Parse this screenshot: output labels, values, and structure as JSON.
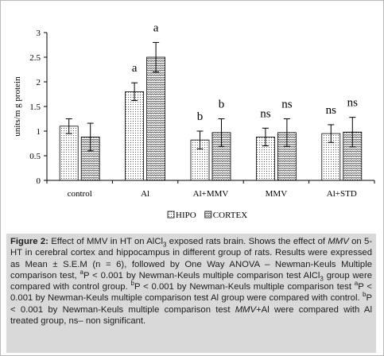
{
  "chart_data": {
    "type": "bar",
    "categories": [
      "control",
      "Al",
      "Al+MMV",
      "MMV",
      "Al+STD"
    ],
    "series": [
      {
        "name": "HIPO",
        "values": [
          1.1,
          1.8,
          0.82,
          0.88,
          0.95
        ],
        "errors": [
          0.15,
          0.18,
          0.18,
          0.18,
          0.18
        ],
        "pattern": "dots"
      },
      {
        "name": "CORTEX",
        "values": [
          0.88,
          2.5,
          0.97,
          0.97,
          0.98
        ],
        "errors": [
          0.28,
          0.3,
          0.28,
          0.28,
          0.3
        ],
        "pattern": "zigzag"
      }
    ],
    "annotations": [
      [
        "",
        ""
      ],
      [
        "a",
        "a"
      ],
      [
        "b",
        "b"
      ],
      [
        "ns",
        "ns"
      ],
      [
        "ns",
        "ns"
      ]
    ],
    "ylabel": "units/m g protein",
    "ylim": [
      0,
      3
    ],
    "yticks": [
      "0",
      "0.5",
      "1",
      "1.5",
      "2",
      "2.5",
      "3"
    ],
    "grid": false,
    "legend_position": "bottom"
  },
  "caption": {
    "label": "Figure 2:",
    "parts": [
      {
        "t": " Effect of MMV in HT on AlCl"
      },
      {
        "t": "3",
        "sub": true
      },
      {
        "t": " exposed rats brain. Shows the effect of "
      },
      {
        "t": "MMV",
        "i": true
      },
      {
        "t": " on 5-HT in cerebral cortex and hippocampus in different group of rats. Results were expressed as Mean ± S.E.M (n = 6), followed by One Way ANOVA – Newman-Keuls Multiple comparison test, "
      },
      {
        "t": "a",
        "sup": true
      },
      {
        "t": "P < 0.001 by Newman-Keuls multiple comparison test AlCl"
      },
      {
        "t": "3",
        "sub": true
      },
      {
        "t": " group were compared with control group. "
      },
      {
        "t": "b",
        "sup": true
      },
      {
        "t": "P < 0.001 by Newman-Keuls multiple comparison test "
      },
      {
        "t": "a",
        "sup": true
      },
      {
        "t": "P < 0.001 by Newman-Keuls multiple comparison test Al group were compared with control. "
      },
      {
        "t": "b",
        "sup": true
      },
      {
        "t": "P < 0.001 by Newman-Keuls multiple comparison test "
      },
      {
        "t": "MMV",
        "i": true
      },
      {
        "t": "+Al were compared with Al treated group, ns– non significant."
      }
    ]
  }
}
